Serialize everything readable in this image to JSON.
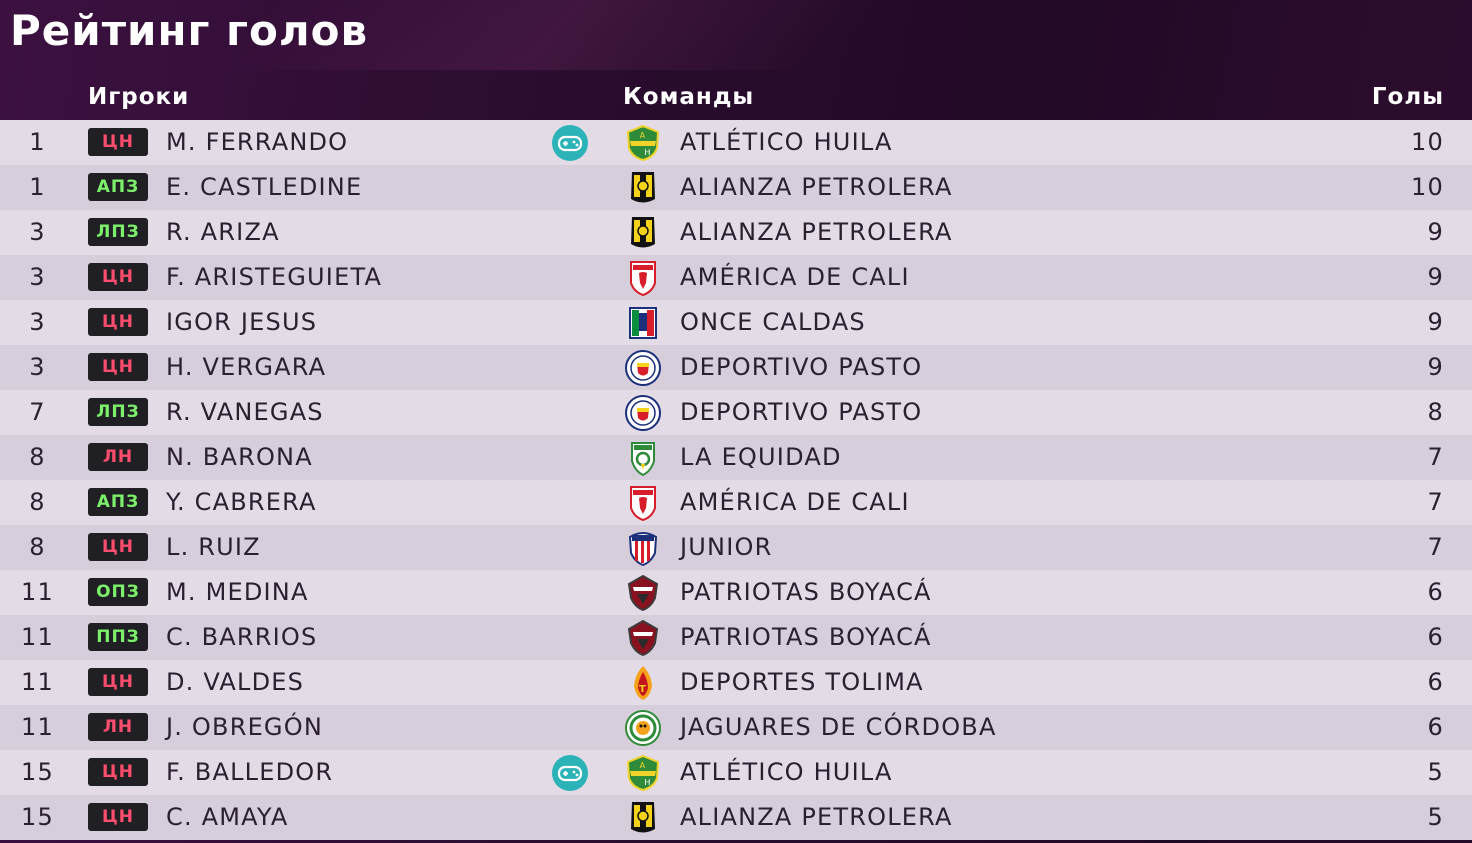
{
  "header": {
    "title": "Рейтинг голов",
    "col_players": "Игроки",
    "col_teams": "Команды",
    "col_goals": "Голы"
  },
  "rows": [
    {
      "rank": "1",
      "pos": "ЦН",
      "name": "M. FERRANDO",
      "controlled": true,
      "team": "ATLÉTICO HUILA",
      "logo": "atletico-huila-logo-icon",
      "goals": "10"
    },
    {
      "rank": "1",
      "pos": "АПЗ",
      "name": "E. CASTLEDINE",
      "controlled": false,
      "team": "ALIANZA PETROLERA",
      "logo": "alianza-petrolera-logo-icon",
      "goals": "10"
    },
    {
      "rank": "3",
      "pos": "ЛПЗ",
      "name": "R. ARIZA",
      "controlled": false,
      "team": "ALIANZA PETROLERA",
      "logo": "alianza-petrolera-logo-icon",
      "goals": "9"
    },
    {
      "rank": "3",
      "pos": "ЦН",
      "name": "F. ARISTEGUIETA",
      "controlled": false,
      "team": "AMÉRICA DE CALI",
      "logo": "america-de-cali-logo-icon",
      "goals": "9"
    },
    {
      "rank": "3",
      "pos": "ЦН",
      "name": "IGOR JESUS",
      "controlled": false,
      "team": "ONCE CALDAS",
      "logo": "once-caldas-logo-icon",
      "goals": "9"
    },
    {
      "rank": "3",
      "pos": "ЦН",
      "name": "H. VERGARA",
      "controlled": false,
      "team": "DEPORTIVO PASTO",
      "logo": "deportivo-pasto-logo-icon",
      "goals": "9"
    },
    {
      "rank": "7",
      "pos": "ЛПЗ",
      "name": "R. VANEGAS",
      "controlled": false,
      "team": "DEPORTIVO PASTO",
      "logo": "deportivo-pasto-logo-icon",
      "goals": "8"
    },
    {
      "rank": "8",
      "pos": "ЛН",
      "name": "N. BARONA",
      "controlled": false,
      "team": "LA EQUIDAD",
      "logo": "la-equidad-logo-icon",
      "goals": "7"
    },
    {
      "rank": "8",
      "pos": "АПЗ",
      "name": "Y. CABRERA",
      "controlled": false,
      "team": "AMÉRICA DE CALI",
      "logo": "america-de-cali-logo-icon",
      "goals": "7"
    },
    {
      "rank": "8",
      "pos": "ЦН",
      "name": "L. RUIZ",
      "controlled": false,
      "team": "JUNIOR",
      "logo": "junior-logo-icon",
      "goals": "7"
    },
    {
      "rank": "11",
      "pos": "ОПЗ",
      "name": "M. MEDINA",
      "controlled": false,
      "team": "PATRIOTAS BOYACÁ",
      "logo": "patriotas-boyaca-logo-icon",
      "goals": "6"
    },
    {
      "rank": "11",
      "pos": "ППЗ",
      "name": "C. BARRIOS",
      "controlled": false,
      "team": "PATRIOTAS BOYACÁ",
      "logo": "patriotas-boyaca-logo-icon",
      "goals": "6"
    },
    {
      "rank": "11",
      "pos": "ЦН",
      "name": "D. VALDES",
      "controlled": false,
      "team": "DEPORTES TOLIMA",
      "logo": "deportes-tolima-logo-icon",
      "goals": "6"
    },
    {
      "rank": "11",
      "pos": "ЛН",
      "name": "J. OBREGÓN",
      "controlled": false,
      "team": "JAGUARES DE CÓRDOBA",
      "logo": "jaguares-de-cordoba-logo-icon",
      "goals": "6"
    },
    {
      "rank": "15",
      "pos": "ЦН",
      "name": "F. BALLEDOR",
      "controlled": true,
      "team": "ATLÉTICO HUILA",
      "logo": "atletico-huila-logo-icon",
      "goals": "5"
    },
    {
      "rank": "15",
      "pos": "ЦН",
      "name": "C. AMAYA",
      "controlled": false,
      "team": "ALIANZA PETROLERA",
      "logo": "alianza-petrolera-logo-icon",
      "goals": "5"
    }
  ],
  "colors": {
    "forward_badge_text": "#ff4d6d",
    "midfielder_badge_text": "#7cf06a",
    "controller_icon": "#2bb3b8"
  }
}
